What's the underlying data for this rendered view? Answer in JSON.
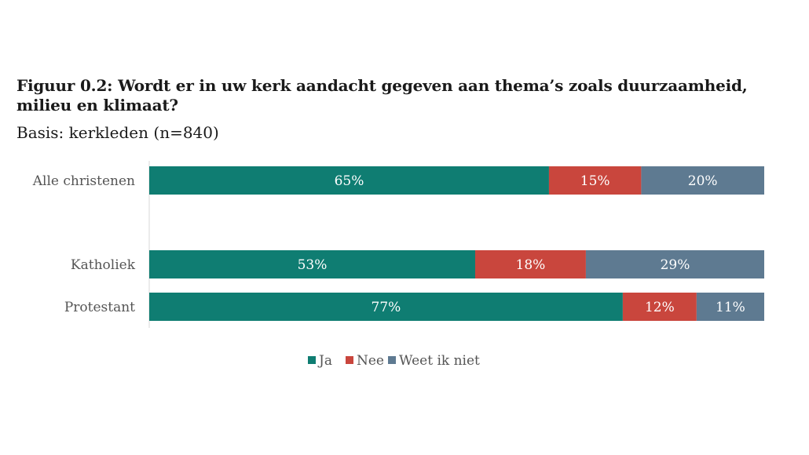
{
  "chart_data": {
    "type": "bar",
    "orientation": "horizontal",
    "stacked": true,
    "percent_stacked": true,
    "title": "Figuur 0.2: Wordt er in uw kerk aandacht gegeven aan thema’s zoals duurzaamheid, milieu en klimaat?",
    "subtitle": "Basis: kerkleden (n=840)",
    "categories": [
      "Alle christenen",
      "",
      "Katholiek",
      "Protestant"
    ],
    "series": [
      {
        "name": "Ja",
        "color": "#0f7d72",
        "values": [
          65,
          null,
          53,
          77
        ],
        "labels": [
          "65%",
          "",
          "53%",
          "77%"
        ]
      },
      {
        "name": "Nee",
        "color": "#c9463d",
        "values": [
          15,
          null,
          18,
          12
        ],
        "labels": [
          "15%",
          "",
          "18%",
          "12%"
        ]
      },
      {
        "name": "Weet ik niet",
        "color": "#5e7a91",
        "values": [
          20,
          null,
          29,
          11
        ],
        "labels": [
          "20%",
          "",
          "29%",
          "11%"
        ]
      }
    ],
    "xlim": [
      0,
      100
    ],
    "grid": false,
    "legend_position": "bottom"
  }
}
